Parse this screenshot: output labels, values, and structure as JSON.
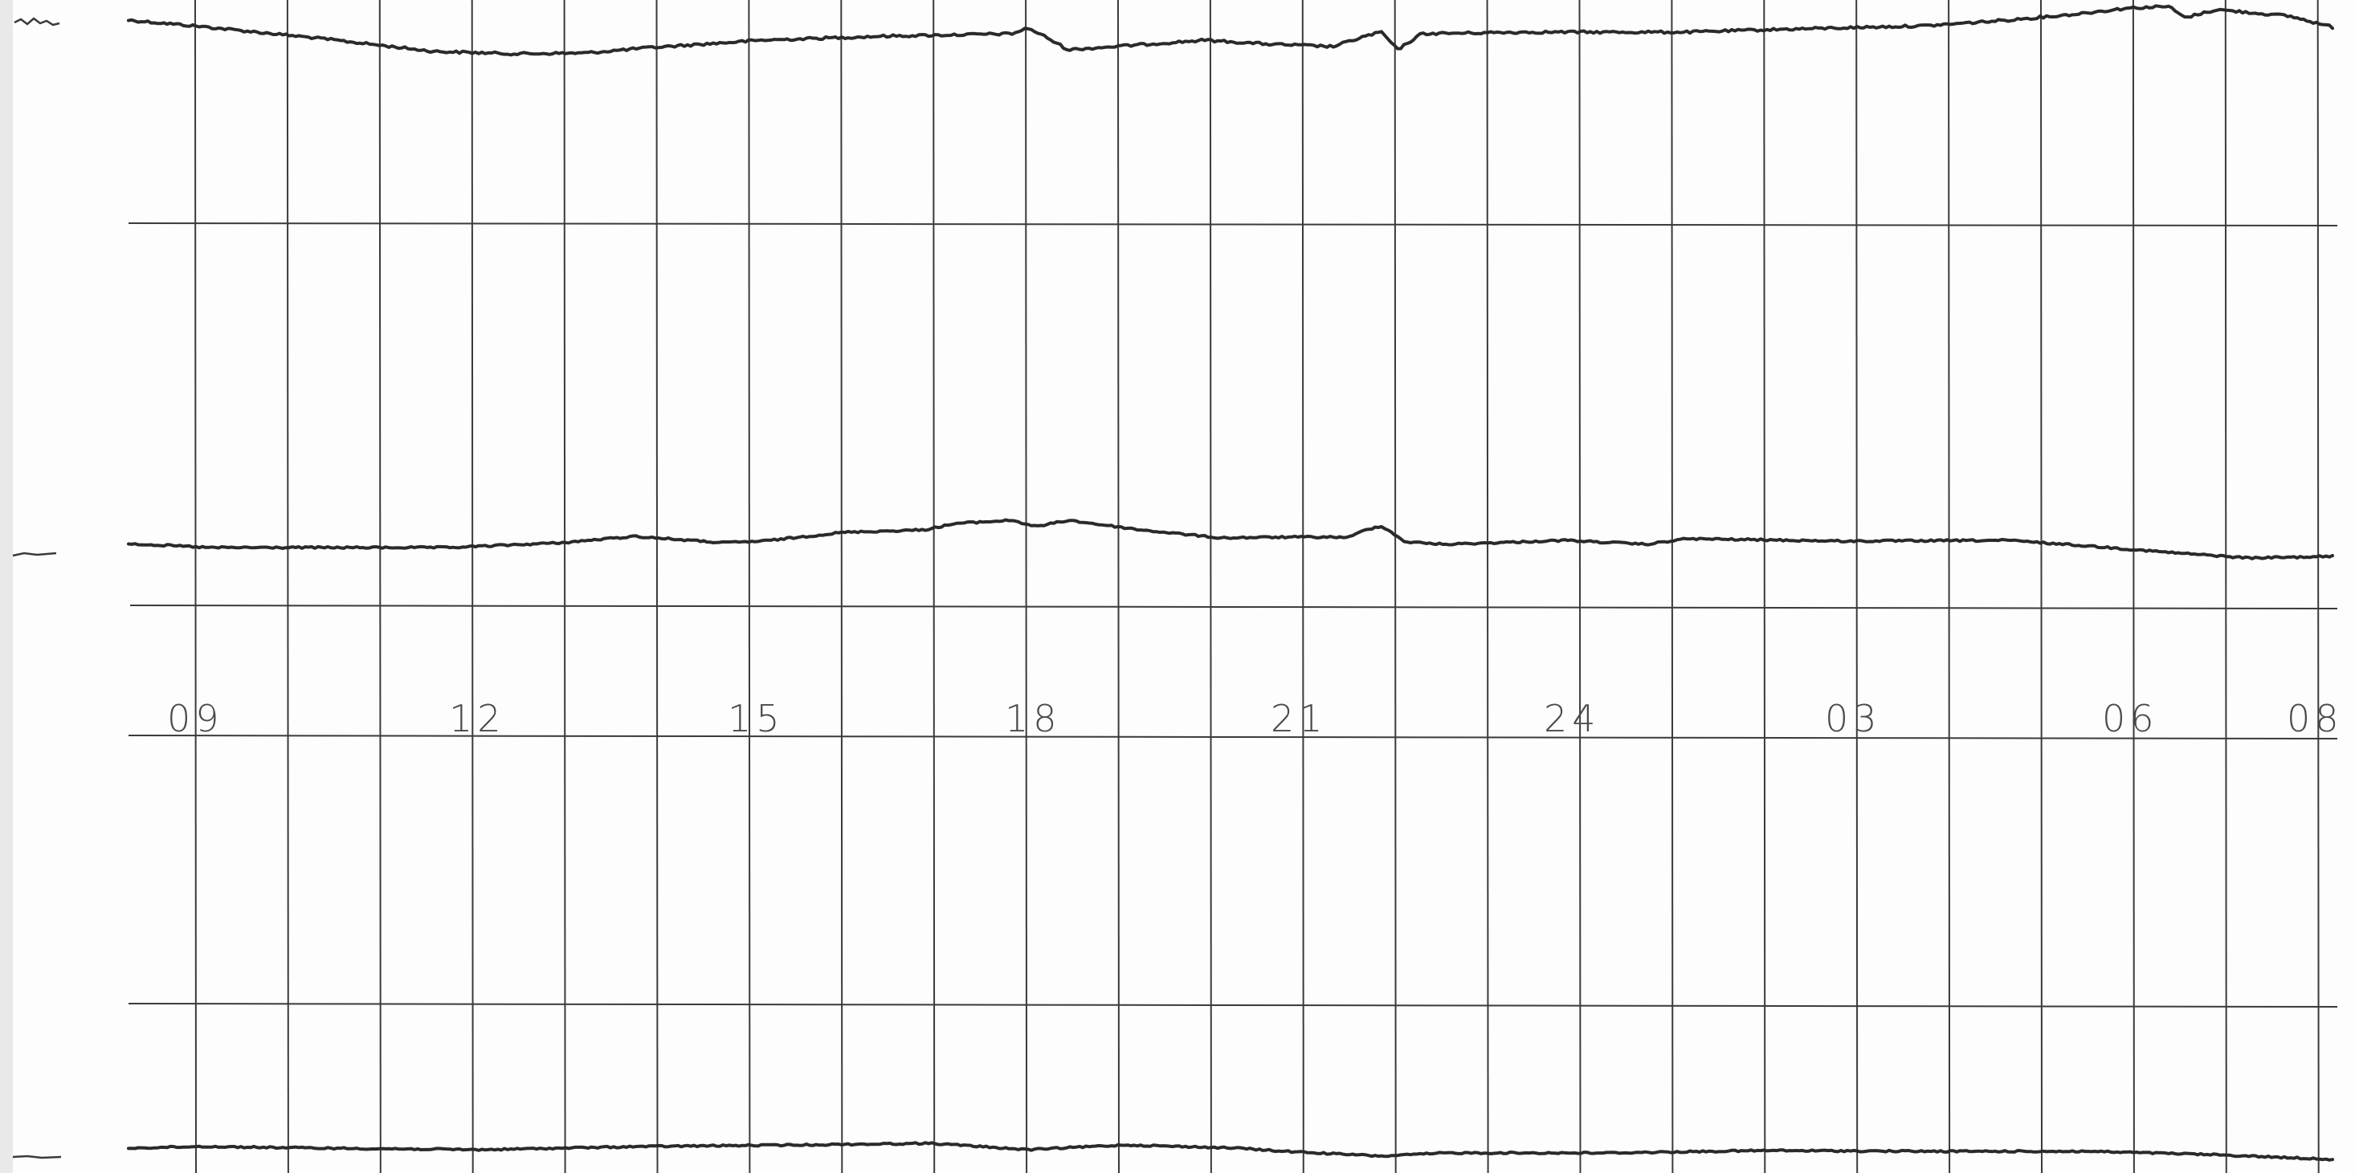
{
  "hour_labels": [
    "09",
    "12",
    "15",
    "18",
    "21",
    "24",
    "03",
    "06",
    "08"
  ],
  "colors": {
    "paper": "#fdfdfd",
    "grid": "#3a3a3a",
    "trace": "#2a2a2a",
    "label": "#4a4a4a",
    "left_margin": "#e9e9e9"
  }
}
